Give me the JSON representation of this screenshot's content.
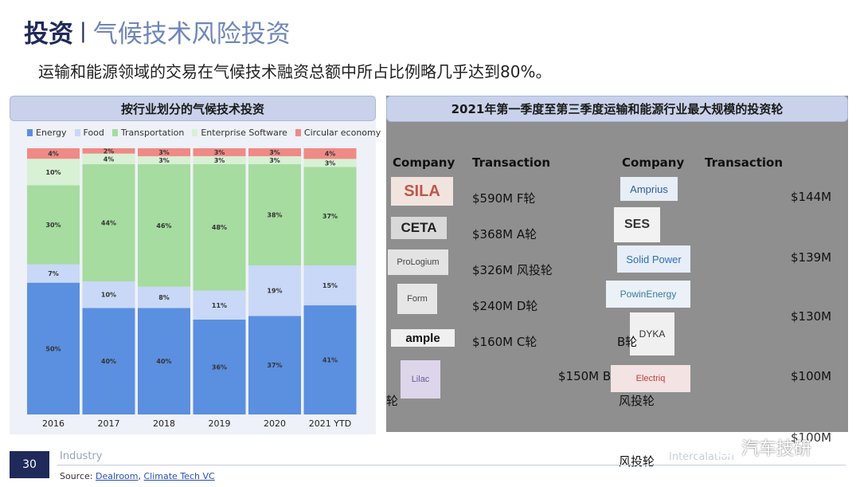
{
  "header": {
    "title_main": "投资",
    "separator": "|",
    "title_sub": "气候技术风险投资",
    "subtitle": "运输和能源领域的交易在气候技术融资总额中所占比例略几乎达到80%。"
  },
  "left_panel": {
    "title": "按行业划分的气候技术投资"
  },
  "chart_data": {
    "type": "bar",
    "stacked": true,
    "normalized": true,
    "categories": [
      "2016",
      "2017",
      "2018",
      "2019",
      "2020",
      "2021 YTD"
    ],
    "series": [
      {
        "name": "Energy",
        "color": "#5b8fe0",
        "values": [
          50,
          40,
          40,
          36,
          37,
          41
        ]
      },
      {
        "name": "Food",
        "color": "#c8d8f6",
        "values": [
          7,
          10,
          8,
          11,
          19,
          15
        ]
      },
      {
        "name": "Transportation",
        "color": "#a6dca0",
        "values": [
          30,
          44,
          46,
          48,
          38,
          37
        ]
      },
      {
        "name": "Enterprise Software",
        "color": "#d8f0d4",
        "values": [
          10,
          4,
          3,
          3,
          3,
          3
        ]
      },
      {
        "name": "Circular economy",
        "color": "#ef8a86",
        "values": [
          4,
          2,
          3,
          3,
          3,
          4
        ]
      }
    ],
    "ylim": [
      0,
      100
    ],
    "legend": "top",
    "data_labels": [
      [
        "50%",
        "7%",
        "30%",
        "10%",
        "4%"
      ],
      [
        "40%",
        "10%",
        "44%",
        "4%",
        "2%"
      ],
      [
        "40%",
        "8%",
        "46%",
        "3%",
        "3%"
      ],
      [
        "36%",
        "11%",
        "48%",
        "3%",
        "3%"
      ],
      [
        "37%",
        "19%",
        "38%",
        "3%",
        "3%"
      ],
      [
        "41%",
        "15%",
        "37%",
        "3%",
        "4%"
      ]
    ]
  },
  "right_panel": {
    "title": "2021年第一季度至第三季度运输和能源行业最大规模的投资轮",
    "col_company": "Company",
    "col_transaction": "Transaction",
    "left_rows": [
      {
        "logo": "SILA",
        "transaction": "$590M F轮"
      },
      {
        "logo": "CETA",
        "transaction": "$368M A轮"
      },
      {
        "logo": "ProLogium",
        "transaction": "$326M 风投轮"
      },
      {
        "logo": "Form",
        "transaction": "$240M D轮"
      },
      {
        "logo": "ample",
        "transaction": "$160M C轮"
      },
      {
        "logo": "Lilac",
        "transaction": "$150M B",
        "suffix": "轮"
      }
    ],
    "right_rows": [
      {
        "logo": "Amprius",
        "transaction": "$144M"
      },
      {
        "logo": "SES",
        "transaction": "$139M"
      },
      {
        "logo": "Solid Power",
        "transaction": "$130M"
      },
      {
        "logo": "PowinEnergy",
        "transaction": "$100M"
      },
      {
        "logo": "DYKA",
        "transaction": "$100M"
      },
      {
        "logo": "Electriq",
        "transaction": ""
      }
    ],
    "stray_b": "B轮",
    "stray_fengtou_1": "风投轮",
    "stray_fengtou_2": "风投轮",
    "stray_intercalation": "Intercalation"
  },
  "footer": {
    "page_number": "30",
    "industry": "Industry",
    "source_label": "Source:",
    "source_1": "Dealroom",
    "source_sep": ",",
    "source_2": "Climate Tech VC"
  },
  "watermark": {
    "text": "汽车技研"
  }
}
